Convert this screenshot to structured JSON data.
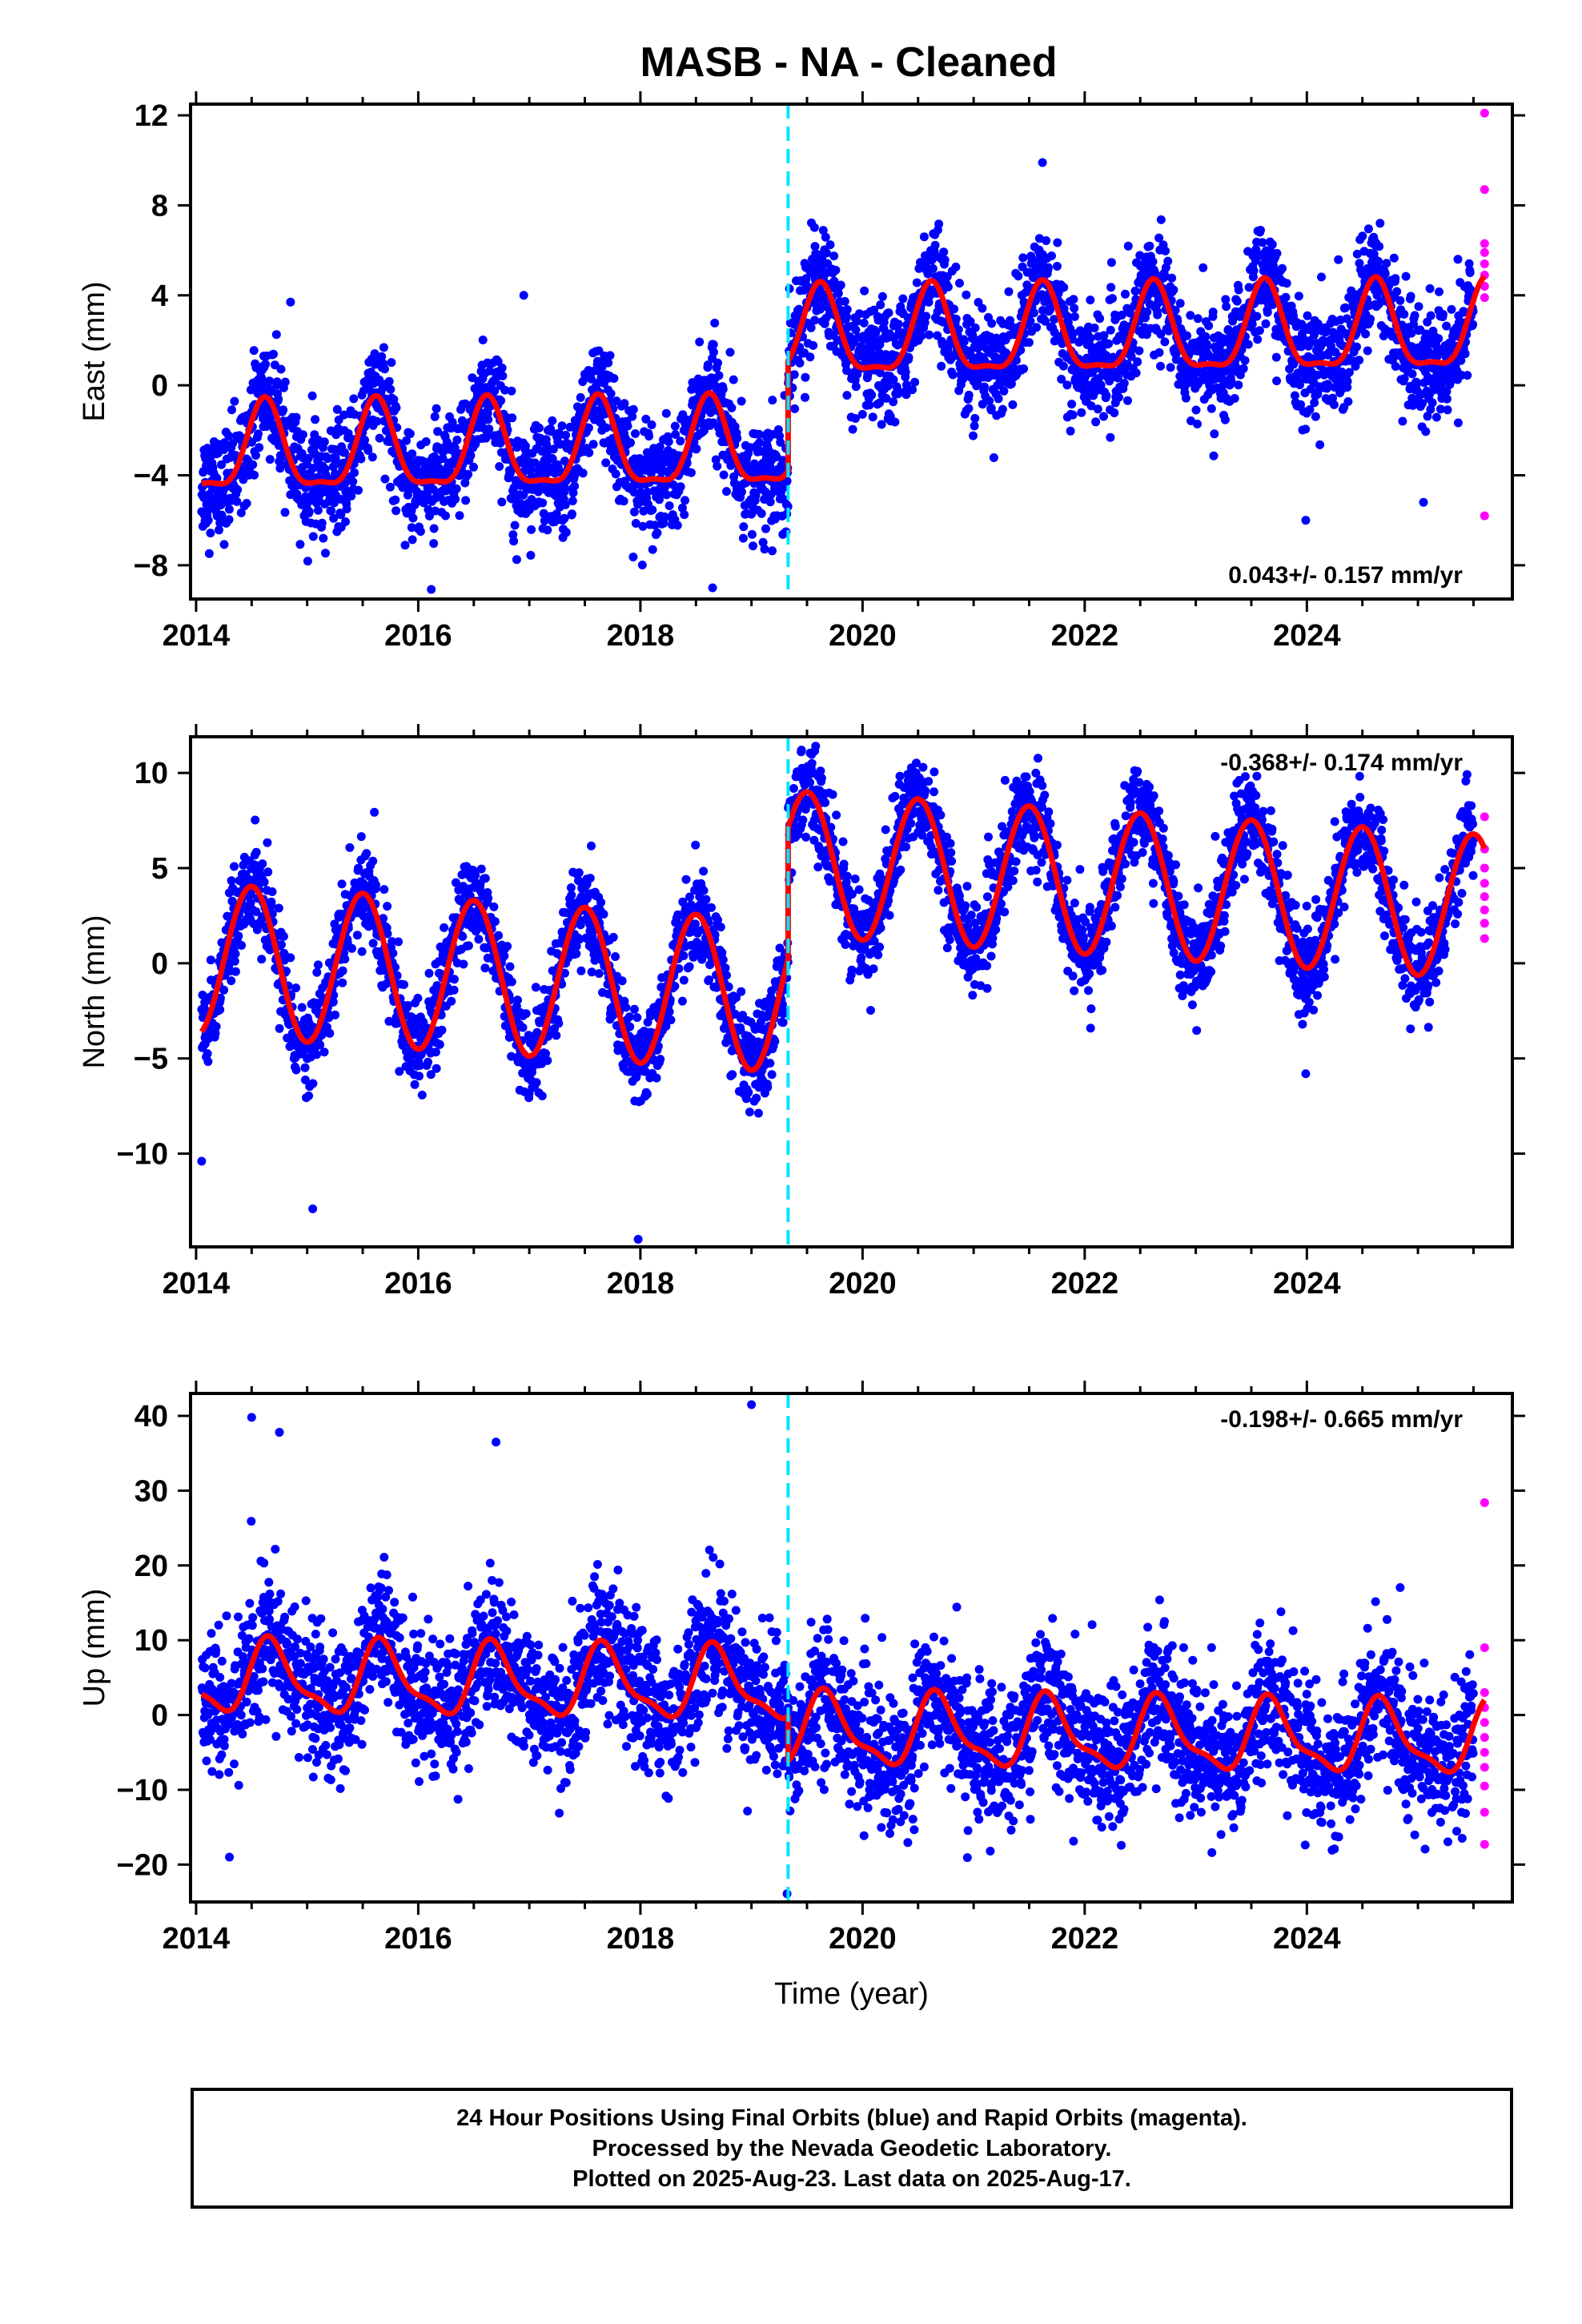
{
  "title": "MASB  - NA - Cleaned",
  "footer": {
    "line1": "24 Hour Positions Using Final Orbits (blue) and Rapid Orbits (magenta).",
    "line2": "Processed by the Nevada Geodetic Laboratory.",
    "line3": "Plotted on 2025-Aug-23. Last data on 2025-Aug-17."
  },
  "colors": {
    "final_orbits": "#0000ff",
    "rapid_orbits": "#ff00ff",
    "model_fit": "#ff0000",
    "offset_marker": "#00e5ff"
  },
  "chart_data": [
    {
      "type": "scatter",
      "panel": "east",
      "ylabel": "East (mm)",
      "xlabel": "",
      "xlim": [
        2013.95,
        2025.85
      ],
      "ylim": [
        -9.5,
        12.5
      ],
      "xticks": [
        2014,
        2016,
        2018,
        2020,
        2022,
        2024
      ],
      "yticks": [
        -8,
        -4,
        0,
        4,
        8,
        12
      ],
      "rate_label": "0.043+/- 0.157 mm/yr",
      "rate_position": "bottom-right",
      "offset_epoch": 2019.33,
      "series": [
        {
          "name": "Final Orbits",
          "role": "final",
          "start": 2014.05,
          "end": 2025.5,
          "scatter_sd": 1.2,
          "outliers": [
            [
              2021.62,
              9.9
            ],
            [
              2016.95,
              4.0
            ],
            [
              2018.65,
              -9.0
            ],
            [
              2025.05,
              -5.2
            ],
            [
              2023.99,
              -6.0
            ],
            [
              2014.85,
              3.7
            ]
          ]
        },
        {
          "name": "Rapid Orbits",
          "role": "rapid",
          "points": [
            [
              2025.6,
              12.1
            ],
            [
              2025.6,
              8.7
            ],
            [
              2025.6,
              6.3
            ],
            [
              2025.6,
              5.9
            ],
            [
              2025.6,
              5.4
            ],
            [
              2025.6,
              4.9
            ],
            [
              2025.6,
              4.4
            ],
            [
              2025.6,
              3.9
            ],
            [
              2025.6,
              -5.8
            ]
          ]
        },
        {
          "name": "Model",
          "role": "fit",
          "segments": [
            {
              "start": 2014.05,
              "end": 2019.33,
              "level": -2.8,
              "trend": 0.043,
              "annual_amp": 1.9,
              "annual_peak": 0.62,
              "semi_amp": 0.6,
              "semi_peak": 0.62
            },
            {
              "start": 2019.33,
              "end": 2025.6,
              "level": 2.1,
              "trend": 0.043,
              "annual_amp": 1.9,
              "annual_peak": 0.62,
              "semi_amp": 0.6,
              "semi_peak": 0.62
            }
          ]
        }
      ]
    },
    {
      "type": "scatter",
      "panel": "north",
      "ylabel": "North (mm)",
      "xlabel": "",
      "xlim": [
        2013.95,
        2025.85
      ],
      "ylim": [
        -14.9,
        11.9
      ],
      "xticks": [
        2014,
        2016,
        2018,
        2020,
        2022,
        2024
      ],
      "yticks": [
        -10,
        -5,
        0,
        5,
        10
      ],
      "rate_label": "-0.368+/- 0.174 mm/yr",
      "rate_position": "top-right",
      "offset_epoch": 2019.33,
      "series": [
        {
          "name": "Final Orbits",
          "role": "final",
          "start": 2014.05,
          "end": 2025.5,
          "scatter_sd": 1.2,
          "outliers": [
            [
              2017.98,
              -14.5
            ],
            [
              2015.05,
              -12.9
            ],
            [
              2019.45,
              11.2
            ],
            [
              2014.05,
              -10.4
            ],
            [
              2023.99,
              -5.8
            ]
          ]
        },
        {
          "name": "Rapid Orbits",
          "role": "rapid",
          "points": [
            [
              2025.6,
              7.7
            ],
            [
              2025.6,
              6.0
            ],
            [
              2025.6,
              5.0
            ],
            [
              2025.6,
              4.2
            ],
            [
              2025.6,
              3.5
            ],
            [
              2025.6,
              2.8
            ],
            [
              2025.6,
              2.1
            ],
            [
              2025.6,
              1.3
            ]
          ]
        },
        {
          "name": "Model",
          "role": "fit",
          "segments": [
            {
              "start": 2014.05,
              "end": 2019.33,
              "level": -1.8,
              "trend": -0.368,
              "annual_amp": 4.0,
              "annual_peak": 0.5
            },
            {
              "start": 2019.33,
              "end": 2025.6,
              "level": 5.2,
              "trend": -0.368,
              "annual_amp": 3.8,
              "annual_peak": 0.5
            }
          ]
        }
      ]
    },
    {
      "type": "scatter",
      "panel": "up",
      "ylabel": "Up (mm)",
      "xlabel": "Time (year)",
      "xlim": [
        2013.95,
        2025.85
      ],
      "ylim": [
        -25,
        43
      ],
      "xticks": [
        2014,
        2016,
        2018,
        2020,
        2022,
        2024
      ],
      "yticks": [
        -20,
        -10,
        0,
        10,
        20,
        30,
        40
      ],
      "rate_label": "-0.198+/- 0.665 mm/yr",
      "rate_position": "top-right",
      "offset_epoch": 2019.33,
      "series": [
        {
          "name": "Final Orbits",
          "role": "final",
          "start": 2014.05,
          "end": 2025.5,
          "scatter_sd": 4.5,
          "outliers": [
            [
              2014.5,
              39.8
            ],
            [
              2014.75,
              37.8
            ],
            [
              2019.0,
              41.5
            ],
            [
              2016.7,
              36.5
            ],
            [
              2019.32,
              -23.9
            ],
            [
              2014.3,
              -19.0
            ],
            [
              2021.15,
              -18.2
            ]
          ]
        },
        {
          "name": "Rapid Orbits",
          "role": "rapid",
          "points": [
            [
              2025.6,
              28.4
            ],
            [
              2025.6,
              9.0
            ],
            [
              2025.6,
              3.0
            ],
            [
              2025.6,
              1.0
            ],
            [
              2025.6,
              -1.0
            ],
            [
              2025.6,
              -3.0
            ],
            [
              2025.6,
              -5.0
            ],
            [
              2025.6,
              -7.0
            ],
            [
              2025.6,
              -9.5
            ],
            [
              2025.6,
              -13.0
            ],
            [
              2025.6,
              -17.3
            ]
          ]
        },
        {
          "name": "Model",
          "role": "fit",
          "segments": [
            {
              "start": 2014.05,
              "end": 2019.33,
              "level": 3.8,
              "trend": -0.198,
              "annual_amp": 4.5,
              "annual_peak": 0.68,
              "semi_amp": 1.5,
              "semi_peak": 0.62
            },
            {
              "start": 2019.33,
              "end": 2025.6,
              "level": -2.2,
              "trend": -0.198,
              "annual_amp": 4.5,
              "annual_peak": 0.68,
              "semi_amp": 1.5,
              "semi_peak": 0.62
            }
          ]
        }
      ]
    }
  ]
}
